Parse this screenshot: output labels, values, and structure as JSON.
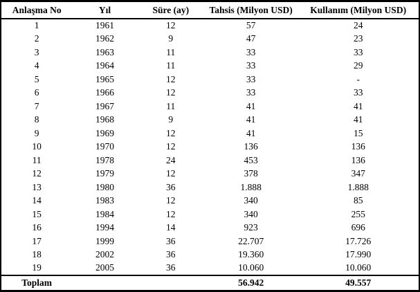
{
  "table": {
    "columns": [
      "Anlaşma No",
      "Yıl",
      "Süre (ay)",
      "Tahsis (Milyon USD)",
      "Kullanım (Milyon USD)"
    ],
    "rows": [
      [
        "1",
        "1961",
        "12",
        "57",
        "24"
      ],
      [
        "2",
        "1962",
        "9",
        "47",
        "23"
      ],
      [
        "3",
        "1963",
        "11",
        "33",
        "33"
      ],
      [
        "4",
        "1964",
        "11",
        "33",
        "29"
      ],
      [
        "5",
        "1965",
        "12",
        "33",
        "-"
      ],
      [
        "6",
        "1966",
        "12",
        "33",
        "33"
      ],
      [
        "7",
        "1967",
        "11",
        "41",
        "41"
      ],
      [
        "8",
        "1968",
        "9",
        "41",
        "41"
      ],
      [
        "9",
        "1969",
        "12",
        "41",
        "15"
      ],
      [
        "10",
        "1970",
        "12",
        "136",
        "136"
      ],
      [
        "11",
        "1978",
        "24",
        "453",
        "136"
      ],
      [
        "12",
        "1979",
        "12",
        "378",
        "347"
      ],
      [
        "13",
        "1980",
        "36",
        "1.888",
        "1.888"
      ],
      [
        "14",
        "1983",
        "12",
        "340",
        "85"
      ],
      [
        "15",
        "1984",
        "12",
        "340",
        "255"
      ],
      [
        "16",
        "1994",
        "14",
        "923",
        "696"
      ],
      [
        "17",
        "1999",
        "36",
        "22.707",
        "17.726"
      ],
      [
        "18",
        "2002",
        "36",
        "19.360",
        "17.990"
      ],
      [
        "19",
        "2005",
        "36",
        "10.060",
        "10.060"
      ]
    ],
    "footer": [
      "Toplam",
      "",
      "",
      "56.942",
      "49.557"
    ],
    "border_color": "#000000",
    "background_color": "#ffffff"
  }
}
